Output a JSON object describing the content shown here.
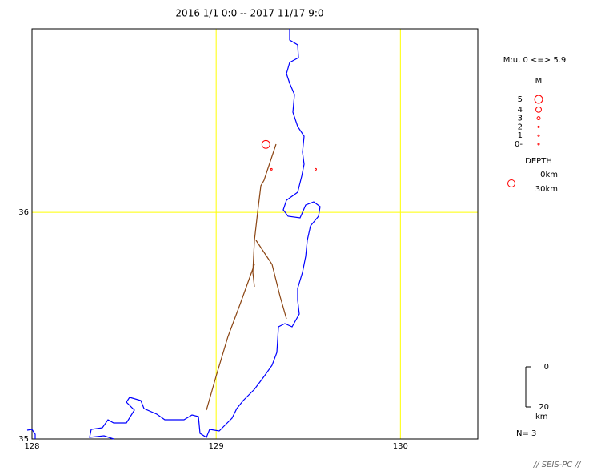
{
  "title": "2016 1/1 0:0 -- 2017 11/17 9:0",
  "map": {
    "xlim": [
      128,
      130.42
    ],
    "ylim": [
      35,
      36.81
    ],
    "xticks": [
      128,
      129,
      130
    ],
    "yticks": [
      35,
      36
    ],
    "grid_color": "#ffff00",
    "event_color": "#ff0000",
    "events": {
      "lon": [
        129.27,
        129.3,
        129.54
      ],
      "lat": [
        36.3,
        36.19,
        36.19
      ],
      "magnitude": [
        5.0,
        1.0,
        1.0
      ]
    }
  },
  "legend": {
    "range_label": "M:u, 0 <=> 5.9",
    "magnitude_title": "M",
    "magnitudes": [
      5,
      4,
      3,
      2,
      1,
      {
        "value": 0,
        "label": "0-"
      }
    ],
    "depth_title": "DEPTH",
    "depth_labels": [
      "0km",
      "30km"
    ]
  },
  "depth_scale": {
    "ticks": [
      0,
      20
    ],
    "lim": [
      0,
      20
    ],
    "unit": "km"
  },
  "count_label": "N= 3",
  "footer": "// SEIS-PC //"
}
